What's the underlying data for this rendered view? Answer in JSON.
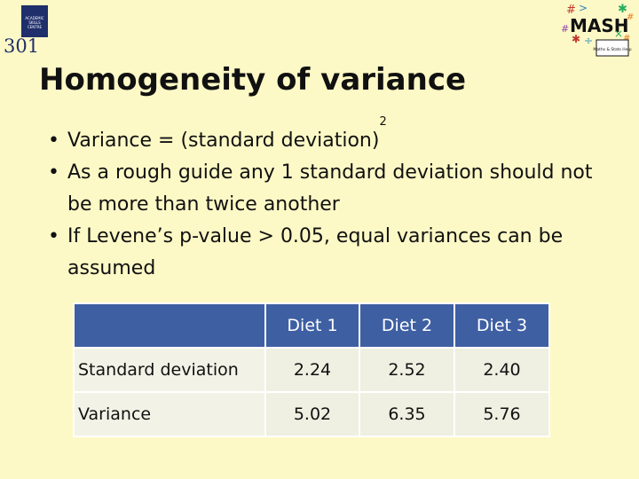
{
  "logo_left": {
    "number": "301",
    "box_text": "ACADEMIC SKILLS CENTRE"
  },
  "logo_right": {
    "word": "MASH",
    "caption": "Maths & Stats Help"
  },
  "slide": {
    "title": "Homogeneity of variance",
    "bullets": [
      {
        "text": "Variance = (standard deviation)",
        "sup": "2"
      },
      {
        "text": "As a rough guide any 1 standard deviation should not be more than twice another"
      },
      {
        "text": "If Levene’s p-value > 0.05, equal variances can be assumed"
      }
    ],
    "bullet_glyph": "•"
  },
  "table": {
    "headers": [
      "",
      "Diet 1",
      "Diet 2",
      "Diet 3"
    ],
    "rows": [
      {
        "label": "Standard deviation",
        "values": [
          "2.24",
          "2.52",
          "2.40"
        ]
      },
      {
        "label": "Variance",
        "values": [
          "5.02",
          "6.35",
          "5.76"
        ]
      }
    ]
  },
  "colors": {
    "background": "#fdf9c6",
    "header_fill": "#3f5fa3",
    "cell_fill": "#efefe2",
    "logo_navy": "#1f2f6b"
  }
}
